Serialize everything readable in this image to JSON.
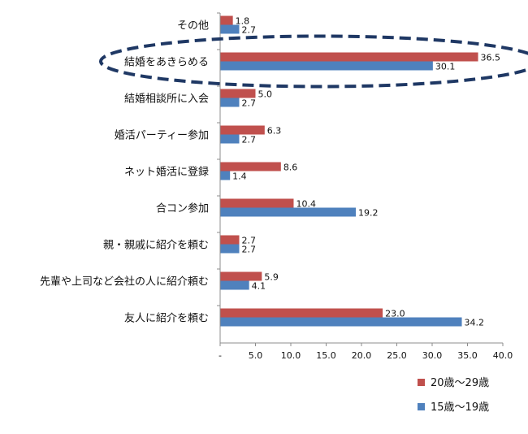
{
  "chart_data": {
    "type": "bar",
    "orientation": "horizontal",
    "categories": [
      "その他",
      "結婚をあきらめる",
      "結婚相談所に入会",
      "婚活パーティー参加",
      "ネット婚活に登録",
      "合コン参加",
      "親・親戚に紹介を頼む",
      "先輩や上司など会社の人に紹介頼む",
      "友人に紹介を頼む"
    ],
    "series": [
      {
        "name": "20歳～29歳",
        "color": "#c0504d",
        "values": [
          1.8,
          36.5,
          5.0,
          6.3,
          8.6,
          10.4,
          2.7,
          5.9,
          23.0
        ],
        "labels": [
          "1.8",
          "36.5",
          "5.0",
          "6.3",
          "8.6",
          "10.4",
          "2.7",
          "5.9",
          "23.0"
        ]
      },
      {
        "name": "15歳～19歳",
        "color": "#4f81bd",
        "values": [
          2.7,
          30.1,
          2.7,
          2.7,
          1.4,
          19.2,
          2.7,
          4.1,
          34.2
        ],
        "labels": [
          "2.7",
          "30.1",
          "2.7",
          "2.7",
          "1.4",
          "19.2",
          "2.7",
          "4.1",
          "34.2"
        ]
      }
    ],
    "xlim": [
      0,
      40
    ],
    "xticks": [
      "-",
      "5.0",
      "10.0",
      "15.0",
      "20.0",
      "25.0",
      "30.0",
      "35.0",
      "40.0"
    ],
    "grid": false,
    "legend_position": "bottom-right",
    "highlight": {
      "category": "結婚をあきらめる",
      "shape": "dashed-ellipse",
      "color": "#1f3864"
    },
    "title": "",
    "xlabel": "",
    "ylabel": ""
  }
}
